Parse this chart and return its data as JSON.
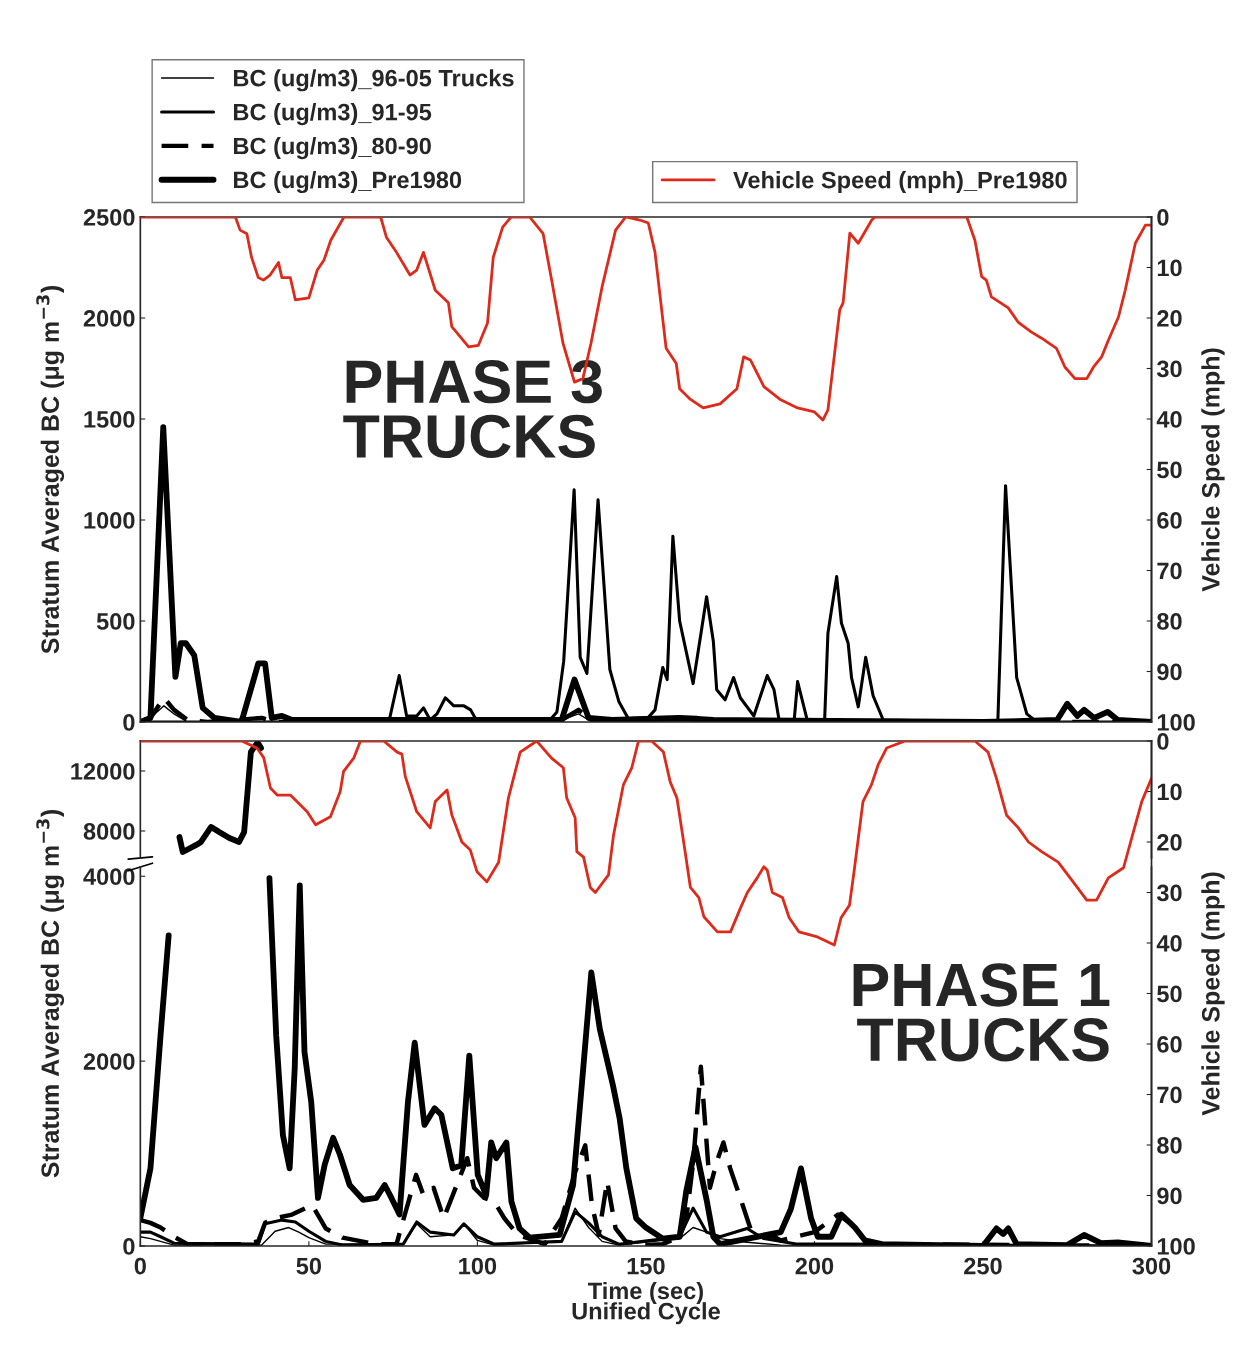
{
  "chart_data": [
    {
      "type": "line",
      "xlim": [
        0,
        300
      ],
      "xticks": [
        0,
        50,
        100,
        150,
        200,
        250,
        300
      ],
      "ylim": [
        0,
        2500
      ],
      "yticks": [
        0,
        500,
        1000,
        1500,
        2000,
        2500
      ],
      "y2lim": [
        100,
        0
      ],
      "y2ticks": [
        0,
        10,
        20,
        30,
        40,
        50,
        60,
        70,
        80,
        90,
        100
      ],
      "ylabel": "Stratum Averaged BC (μg m$^{−3}$)",
      "y2label": "Vehicle Speed (mph)",
      "annotations": [
        "PHASE 3\nTRUCKS"
      ],
      "legend": "top",
      "tick_labels": "y",
      "series": [
        {
          "name": "BC (ug/m3)_96-05 Trucks",
          "color": "#000000",
          "x": [
            0,
            3,
            7,
            10,
            14,
            125,
            130,
            134,
            300
          ],
          "values": [
            0,
            20,
            80,
            40,
            0,
            10,
            40,
            0,
            0
          ]
        },
        {
          "name": "BC (ug/m3)_91-95",
          "color": "#000000",
          "x": [
            0,
            70,
            74,
            76.8,
            79,
            82,
            84,
            86,
            88,
            90.5,
            93,
            96,
            98,
            100,
            121,
            123.6,
            125.6,
            128.7,
            130.5,
            132.5,
            135.8,
            139.3,
            142,
            145,
            150,
            152.7,
            155,
            156.3,
            158,
            160,
            164,
            166.4,
            168,
            170,
            171,
            173.5,
            176,
            178,
            182,
            186,
            188,
            189.5,
            194,
            195,
            198,
            203,
            204,
            206.6,
            208,
            210,
            211,
            213,
            215.2,
            217.4,
            220.4,
            254.4,
            256.7,
            260,
            263,
            266,
            300
          ],
          "values": [
            0,
            0,
            20,
            230,
            30,
            30,
            70,
            10,
            40,
            120,
            80,
            80,
            60,
            0,
            0,
            50,
            300,
            1150,
            320,
            240,
            1100,
            260,
            100,
            10,
            10,
            60,
            270,
            210,
            920,
            500,
            190,
            445,
            620,
            400,
            160,
            110,
            220,
            120,
            30,
            230,
            160,
            10,
            10,
            200,
            0,
            0,
            440,
            720,
            490,
            390,
            220,
            75,
            320,
            130,
            10,
            0,
            1170,
            220,
            40,
            0,
            0
          ]
        },
        {
          "name": "BC (ug/m3)_80-90",
          "color": "#000000",
          "line_style": "dashed",
          "x": [
            0,
            3,
            7,
            10,
            14,
            20,
            36,
            40,
            125,
            130,
            134,
            160,
            165,
            170,
            300
          ],
          "values": [
            0,
            20,
            120,
            60,
            10,
            0,
            20,
            0,
            10,
            60,
            10,
            20,
            20,
            0,
            0
          ]
        },
        {
          "name": "BC (ug/m3)_Pre1980",
          "color": "#000000",
          "x": [
            0,
            3,
            6.8,
            10.4,
            12,
            13.5,
            16,
            18.5,
            22,
            30,
            35,
            37,
            39,
            42,
            45,
            125,
            128.8,
            133,
            140,
            160,
            170,
            250,
            272,
            275,
            278,
            280,
            283,
            287,
            290,
            300
          ],
          "values": [
            0,
            20,
            1460,
            223,
            390,
            390,
            330,
            70,
            20,
            0,
            290,
            290,
            20,
            30,
            10,
            10,
            210,
            20,
            10,
            20,
            10,
            0,
            10,
            90,
            30,
            60,
            20,
            50,
            10,
            0
          ]
        },
        {
          "name": "Vehicle Speed (mph)_Pre1980",
          "color": "#dd2a1a",
          "axis": "y2",
          "x": [
            0,
            28.2,
            29.6,
            31.6,
            33,
            35,
            36.5,
            38.5,
            41,
            42,
            44.5,
            46,
            50,
            52.5,
            54.5,
            56.5,
            60.4,
            71.3,
            73,
            76,
            80,
            82,
            84,
            87.5,
            91.4,
            92.4,
            97.4,
            100.3,
            103,
            104.7,
            107.5,
            110,
            115.5,
            119.5,
            122,
            125.4,
            128.8,
            131.3,
            133.7,
            137,
            141,
            144,
            148.2,
            150.7,
            152.7,
            156,
            159,
            160,
            163,
            167,
            172,
            177,
            179,
            181,
            185,
            190,
            195,
            200,
            202.5,
            204,
            207.5,
            208.5,
            210.5,
            213,
            217,
            218,
            245.2,
            247.6,
            249.6,
            251,
            252.5,
            257.5,
            260.4,
            264.4,
            267.4,
            271.8,
            274.3,
            277.3,
            280.8,
            282.8,
            285.2,
            287.2,
            290.2,
            292.2,
            295.2,
            298.2,
            300
          ],
          "values": [
            0,
            0,
            2.6,
            3.3,
            8,
            12,
            12.5,
            11.5,
            9,
            12,
            12,
            16.4,
            16,
            10.5,
            8.5,
            4.6,
            0,
            0,
            4,
            7,
            11.5,
            10.5,
            7,
            14.5,
            17,
            21.7,
            25.7,
            25.4,
            21,
            8,
            2,
            0,
            0,
            3.3,
            12.4,
            25,
            32.7,
            32,
            25,
            13.8,
            2.6,
            0,
            0.6,
            1.2,
            7,
            26,
            29,
            34,
            36,
            37.8,
            37,
            34,
            27.7,
            28.3,
            33.6,
            36.2,
            37.8,
            38.6,
            40.2,
            38.2,
            18.4,
            17,
            3.2,
            5.2,
            0.6,
            0,
            0,
            4.6,
            11.8,
            12.5,
            15.8,
            18,
            20.8,
            22.8,
            24,
            26,
            29.7,
            32,
            32,
            29.7,
            27.7,
            24.4,
            19.8,
            14.5,
            5.2,
            1.6,
            1.6
          ]
        }
      ]
    },
    {
      "type": "line",
      "xlim": [
        0,
        300
      ],
      "xticks": [
        0,
        50,
        100,
        150,
        200,
        250,
        300
      ],
      "ylim": [
        6200,
        14000
      ],
      "yticks": [
        8000,
        12000
      ],
      "tick_labels": "y",
      "series": [
        {
          "color": "#000000",
          "x": [
            11.6,
            12.6,
            16.6,
            18,
            21,
            23.4,
            26.4,
            29.3,
            30.8,
            32.8,
            34.8,
            35.8
          ],
          "values": [
            7600,
            6600,
            7070,
            7270,
            8270,
            7930,
            7530,
            7270,
            7930,
            13270,
            13900,
            13530
          ]
        }
      ]
    },
    {
      "type": "line",
      "xlim": [
        0,
        300
      ],
      "xticks": [
        0,
        50,
        100,
        150,
        200,
        250,
        300
      ],
      "ylim": [
        0,
        4100
      ],
      "yticks": [
        0,
        2000,
        4000
      ],
      "y2lim": [
        100,
        0
      ],
      "y2ticks": [
        0,
        10,
        20,
        30,
        40,
        50,
        60,
        70,
        80,
        90,
        100
      ],
      "xlabel": "Time (sec)\nUnified Cycle",
      "ylabel": "Stratum Averaged BC (μg m$^{−3}$)",
      "y2label": "Vehicle Speed (mph)",
      "annotations": [
        "PHASE 1\nTRUCKS"
      ],
      "series": [
        {
          "color": "#000000",
          "x": [
            0,
            3,
            6,
            10,
            36,
            40,
            44,
            47,
            50,
            55,
            78,
            82,
            86,
            93,
            96,
            100,
            105,
            125,
            129,
            133,
            137,
            142,
            160,
            164,
            168,
            172,
            180,
            190,
            300
          ],
          "values": [
            100,
            80,
            50,
            10,
            10,
            160,
            200,
            150,
            90,
            20,
            20,
            240,
            100,
            120,
            240,
            60,
            10,
            50,
            410,
            200,
            50,
            10,
            80,
            200,
            150,
            80,
            40,
            10,
            0
          ]
        },
        {
          "color": "#000000",
          "x": [
            0,
            3,
            6,
            10,
            35,
            37,
            42,
            46,
            50,
            55,
            60,
            78,
            82,
            86,
            93,
            96,
            100,
            105,
            125,
            129,
            133,
            137,
            142,
            160,
            164,
            168,
            172,
            180,
            185,
            195,
            210,
            300
          ],
          "values": [
            150,
            150,
            100,
            30,
            20,
            240,
            280,
            260,
            160,
            50,
            10,
            20,
            260,
            150,
            120,
            240,
            100,
            20,
            50,
            370,
            250,
            100,
            20,
            100,
            410,
            150,
            100,
            190,
            80,
            20,
            20,
            0
          ]
        },
        {
          "color": "#000000",
          "line_style": "dashed",
          "x": [
            0,
            3,
            6,
            10,
            14,
            30,
            35,
            37,
            40,
            45,
            49,
            51,
            55,
            60,
            70,
            76,
            81.8,
            84,
            87,
            90,
            97,
            99,
            102,
            105,
            108,
            112,
            120,
            125,
            129,
            132,
            134,
            136,
            138.5,
            141,
            144,
            150,
            155,
            160,
            162,
            164,
            166.3,
            169,
            171,
            173,
            175,
            178,
            181,
            184,
            188,
            190,
            200,
            207,
            211,
            215,
            220,
            300
          ],
          "values": [
            280,
            250,
            200,
            100,
            20,
            20,
            50,
            250,
            300,
            340,
            410,
            440,
            190,
            90,
            20,
            20,
            770,
            550,
            630,
            300,
            950,
            630,
            520,
            480,
            300,
            120,
            20,
            300,
            800,
            1090,
            440,
            120,
            700,
            190,
            50,
            10,
            20,
            100,
            300,
            900,
            1940,
            630,
            910,
            1120,
            840,
            520,
            190,
            120,
            100,
            60,
            150,
            340,
            240,
            60,
            20,
            0
          ]
        },
        {
          "color": "#000000",
          "x": [
            0,
            3,
            6,
            8.4,
            20,
            38.3,
            40.3,
            42.3,
            44.3,
            45.8,
            47.3,
            48.7,
            50.7,
            52.7,
            54.7,
            57.2,
            59.2,
            62.1,
            66.1,
            70,
            72.5,
            74.5,
            76.9,
            79.4,
            81.4,
            84.3,
            87.3,
            89.3,
            92.7,
            95.2,
            97.6,
            100.1,
            102.6,
            104.1,
            105.6,
            108.6,
            110.1,
            112.5,
            115.5,
            124.4,
            128.4,
            131.4,
            133.8,
            136.3,
            140.2,
            142.2,
            144.2,
            147.1,
            150,
            155,
            160,
            162,
            164.7,
            168,
            170,
            172,
            190,
            193,
            196,
            199,
            201,
            205,
            208,
            212,
            215,
            220,
            250,
            254,
            256,
            257.5,
            260,
            275,
            280,
            285,
            290,
            300
          ],
          "values": [
            300,
            840,
            2280,
            3360,
            null,
            3980,
            2280,
            1200,
            840,
            1920,
            3900,
            2100,
            1560,
            520,
            880,
            1170,
            990,
            660,
            500,
            520,
            660,
            520,
            340,
            1560,
            2200,
            1310,
            1490,
            1420,
            840,
            870,
            2060,
            770,
            550,
            1120,
            950,
            1120,
            480,
            190,
            90,
            120,
            660,
            1920,
            2960,
            2350,
            1740,
            1380,
            840,
            300,
            200,
            80,
            100,
            600,
            1070,
            500,
            100,
            20,
            150,
            400,
            840,
            300,
            100,
            100,
            340,
            200,
            60,
            20,
            0,
            190,
            130,
            190,
            20,
            10,
            120,
            30,
            40,
            0
          ]
        },
        {
          "color": "#dd2a1a",
          "axis": "y2",
          "x": [
            0,
            30.1,
            34.6,
            36.6,
            38.6,
            40.6,
            44.5,
            49.5,
            52,
            56.4,
            59.3,
            60.3,
            63.3,
            65.3,
            72.2,
            76.2,
            77.6,
            78.6,
            82,
            86,
            87.5,
            91,
            92.4,
            95.4,
            97.9,
            99.9,
            102.8,
            106.3,
            109.2,
            112.7,
            117.6,
            122,
            125.5,
            126.5,
            129,
            129.5,
            131.5,
            133.5,
            135,
            138.9,
            140.4,
            143.3,
            145.8,
            147.8,
            151.7,
            155.2,
            157.2,
            159.2,
            161.2,
            163.2,
            165.7,
            167.2,
            171.2,
            175.1,
            178.1,
            180.1,
            183,
            185,
            186,
            187.5,
            190.5,
            192.5,
            195.4,
            200.9,
            205.9,
            207.9,
            210.4,
            211.9,
            214.4,
            216.9,
            218.9,
            221.4,
            226.9,
            247.6,
            251.5,
            254,
            257,
            260.5,
            263.5,
            267.4,
            272.3,
            276.3,
            280.8,
            283.7,
            287.2,
            291.7,
            297.1,
            300
          ],
          "values": [
            0,
            0,
            1.4,
            3.3,
            9.3,
            10.7,
            10.7,
            14,
            16.6,
            15,
            10,
            6,
            3.4,
            0,
            0,
            2.2,
            2.6,
            7,
            14,
            17.2,
            12,
            9.7,
            14.6,
            20,
            21.6,
            25.9,
            27.9,
            24,
            11.3,
            2.2,
            0,
            3.4,
            5.3,
            11.3,
            15.2,
            21.9,
            23,
            29,
            30,
            26.5,
            18.6,
            8.7,
            5.3,
            0,
            0,
            2.2,
            8.1,
            11.3,
            20,
            29,
            31,
            34.8,
            37.8,
            37.8,
            33,
            30,
            27.1,
            24.9,
            25.6,
            30,
            31,
            35,
            37.8,
            38.8,
            40.4,
            35,
            32.5,
            25.1,
            12,
            8.7,
            4.7,
            1.4,
            0,
            0,
            2.2,
            7.4,
            14.7,
            17.2,
            20,
            21.9,
            24,
            27.5,
            31.5,
            31.5,
            27.1,
            25.1,
            12,
            7.4
          ]
        }
      ]
    }
  ]
}
